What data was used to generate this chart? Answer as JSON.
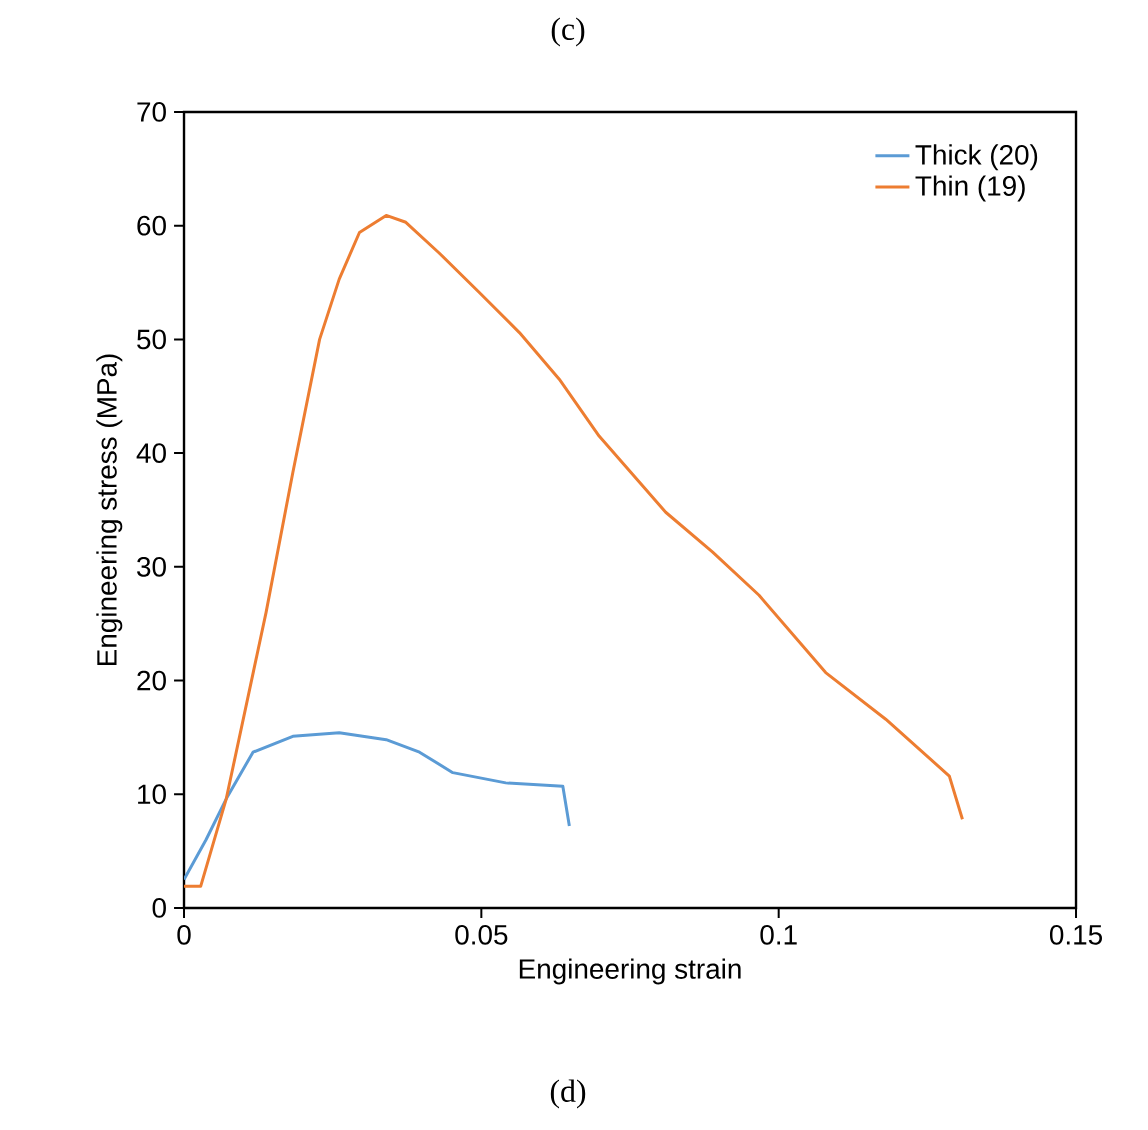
{
  "chart_data": {
    "type": "line",
    "title": "(c)",
    "annotations": [
      "(d)"
    ],
    "xlabel": "Engineering strain",
    "ylabel": "Engineering stress (MPa)",
    "xlim": [
      0,
      0.15
    ],
    "xticks": [
      0,
      0.05,
      0.1,
      0.15
    ],
    "ylim": [
      0,
      70
    ],
    "yticks": [
      0,
      10,
      20,
      30,
      40,
      50,
      60,
      70
    ],
    "legend": "top right",
    "grid": false,
    "marker": "none",
    "line_style": "solid",
    "series": [
      {
        "name": "Thick (20)",
        "color": "#5b9bd5",
        "x": [
          0,
          0.0037,
          0.0071,
          0.0116,
          0.0183,
          0.0261,
          0.034,
          0.0396,
          0.0452,
          0.0541,
          0.0637,
          0.0648
        ],
        "values": [
          2.5,
          6.0,
          9.6,
          13.7,
          15.1,
          15.4,
          14.8,
          13.7,
          11.9,
          11.0,
          10.7,
          7.2
        ]
      },
      {
        "name": "Thin (19)",
        "color": "#ed7d31",
        "x": [
          0,
          0.0028,
          0.0071,
          0.0138,
          0.0183,
          0.0228,
          0.0261,
          0.0295,
          0.034,
          0.0373,
          0.0429,
          0.0497,
          0.0564,
          0.0631,
          0.0698,
          0.081,
          0.0889,
          0.0967,
          0.1079,
          0.118,
          0.1287,
          0.1309
        ],
        "values": [
          1.9,
          1.9,
          9.6,
          26.0,
          38.3,
          50.0,
          55.3,
          59.4,
          60.9,
          60.3,
          57.6,
          54.1,
          50.6,
          46.5,
          41.5,
          34.8,
          31.3,
          27.5,
          20.7,
          16.6,
          11.6,
          7.8
        ]
      }
    ]
  }
}
